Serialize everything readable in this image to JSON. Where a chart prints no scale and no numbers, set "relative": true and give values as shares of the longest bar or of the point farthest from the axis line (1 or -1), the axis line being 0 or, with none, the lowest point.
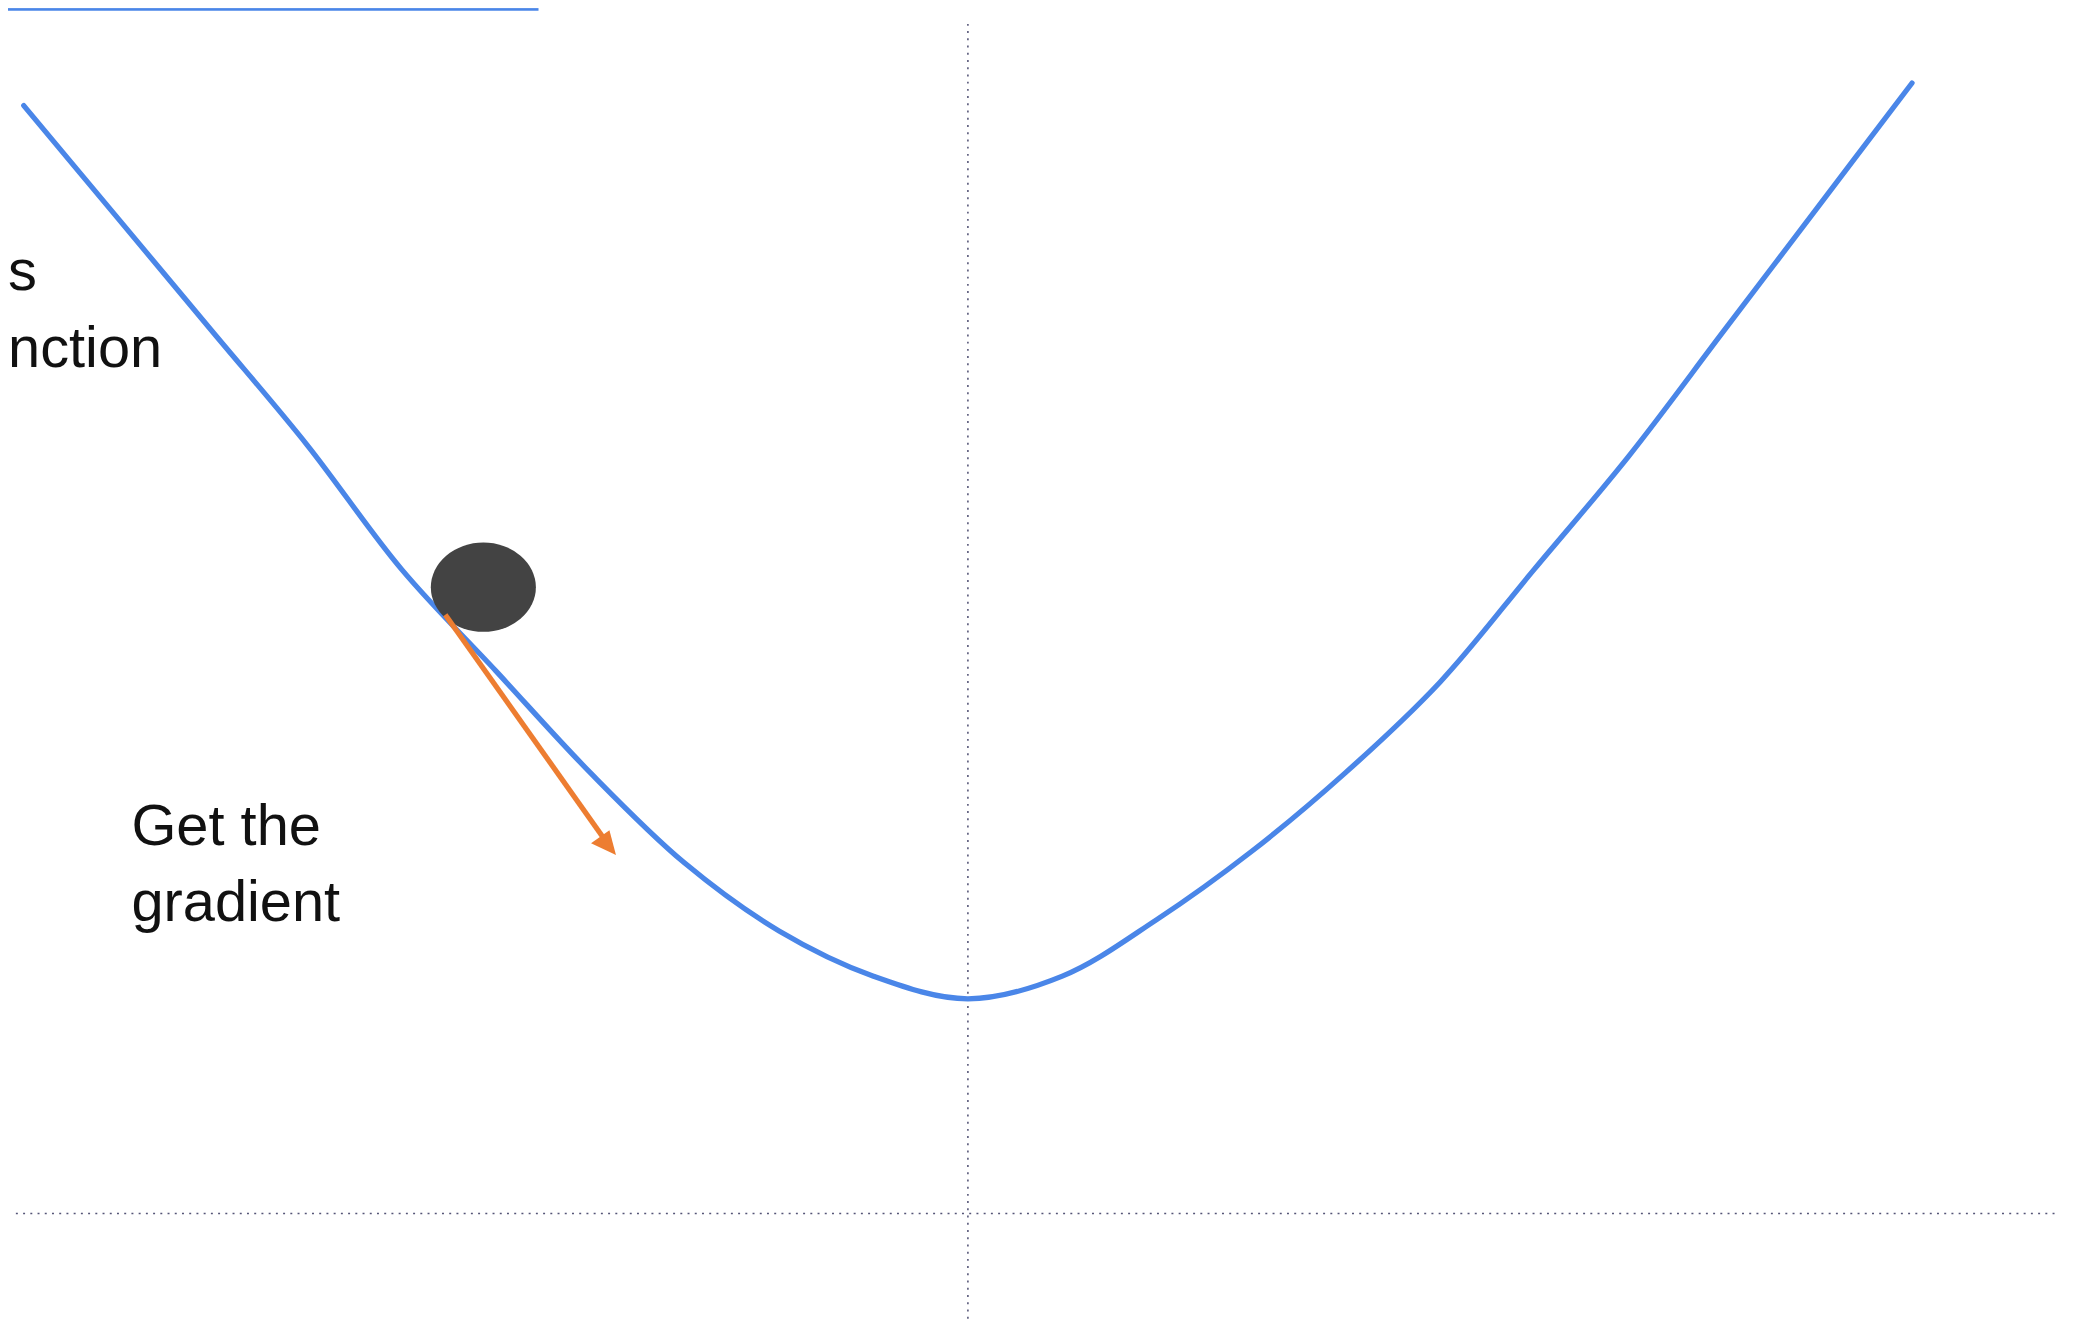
{
  "chart_data": {
    "type": "line",
    "relative": true,
    "categories": [
      null,
      null,
      null,
      null,
      null,
      null,
      null,
      null,
      null,
      null,
      null,
      null,
      null,
      null,
      null,
      null,
      null,
      null,
      null,
      null,
      null
    ],
    "series": [
      {
        "color": "#4a86e8",
        "values": [
          0.98,
          0.88,
          0.78,
          0.68,
          0.57,
          0.48,
          0.39,
          0.31,
          0.25,
          0.21,
          0.19,
          0.21,
          0.26,
          0.32,
          0.39,
          0.47,
          0.57,
          0.67,
          0.78,
          0.89,
          1
        ]
      }
    ],
    "annotations": [
      "s\nnction",
      "Get the\ngradient"
    ]
  }
}
